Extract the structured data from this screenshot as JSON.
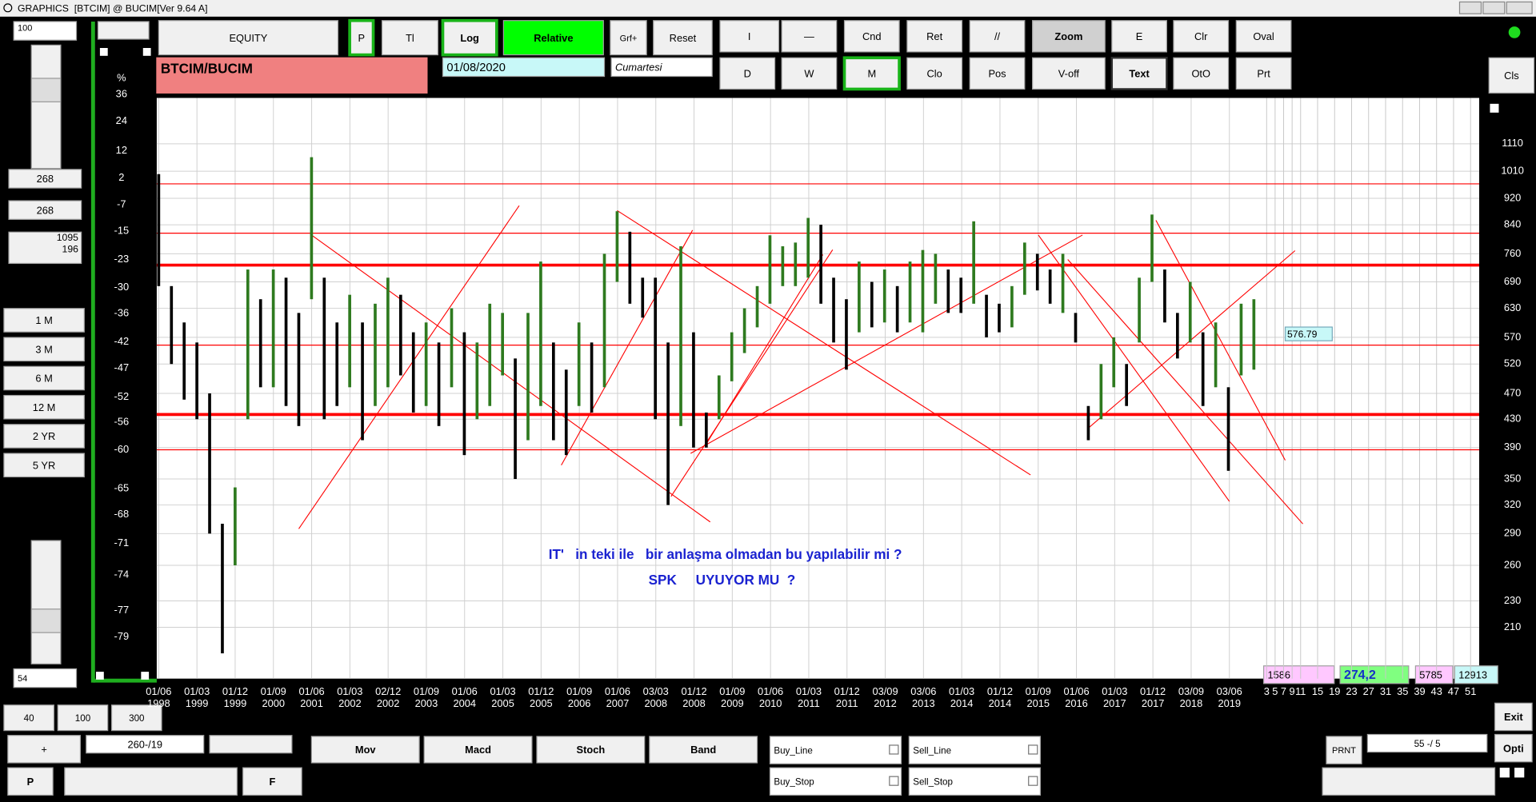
{
  "window": {
    "title": "GRAPHICS  [BTCIM] @ BUCIM[Ver 9.64 A]"
  },
  "toolbar": {
    "row1": [
      "EQUITY",
      "P",
      "Tl",
      "Log",
      "Relative",
      "Grf+",
      "Reset",
      "I",
      "—",
      "Cnd",
      "Ret",
      "//",
      "Zoom",
      "E",
      "Clr",
      "Oval"
    ],
    "row2": [
      "D",
      "W",
      "M",
      "Clo",
      "Pos",
      "V-off",
      "Text",
      "OtO",
      "Prt"
    ],
    "symbol": "BTCIM/BUCIM",
    "date": "01/08/2020",
    "day": "Cumartesi",
    "close": "Cls"
  },
  "left_panel": {
    "input": "100",
    "fields": [
      "268",
      "268"
    ],
    "range": [
      "1095",
      "196"
    ],
    "periods": [
      "1 M",
      "3 M",
      "6 M",
      "12 M",
      "2 YR",
      "5 YR"
    ],
    "bottom_input": "54"
  },
  "bottom_panel": {
    "zoom": [
      "40",
      "100",
      "300"
    ],
    "plus": "+",
    "position": "260-/19",
    "p": "P",
    "f": "F",
    "indicators": [
      "Mov",
      "Macd",
      "Stoch",
      "Band"
    ],
    "orders": [
      "Buy_Line",
      "Sell_Line",
      "Buy_Stop",
      "Sell_Stop"
    ],
    "prnt": "PRNT",
    "count": "55 -/ 5",
    "exit": "Exit",
    "opti": "Opti",
    "stats": [
      "1586",
      "274,2",
      "5785",
      "12913"
    ]
  },
  "chart_data": {
    "type": "ohlc",
    "log": true,
    "grid": true,
    "y2_label": "%",
    "ylim": [
      176,
      1300
    ],
    "yticks": [
      1110,
      1010,
      920,
      840,
      760,
      690,
      630,
      570,
      520,
      470,
      430,
      390,
      350,
      320,
      290,
      260,
      230,
      210
    ],
    "y2lim": [
      -81.8,
      34.4
    ],
    "y2ticks": [
      36,
      24,
      12,
      2,
      -7,
      -15,
      -23,
      -30,
      -36,
      -42,
      -47,
      -52,
      -56,
      -60,
      -65,
      -68,
      -71,
      -74,
      -77,
      -79
    ],
    "x_labels": [
      {
        "day": "01/06",
        "year": "1998"
      },
      {
        "day": "01/03",
        "year": "1999"
      },
      {
        "day": "01/12",
        "year": "1999"
      },
      {
        "day": "01/09",
        "year": "2000"
      },
      {
        "day": "01/06",
        "year": "2001"
      },
      {
        "day": "01/03",
        "year": "2002"
      },
      {
        "day": "02/12",
        "year": "2002"
      },
      {
        "day": "01/09",
        "year": "2003"
      },
      {
        "day": "01/06",
        "year": "2004"
      },
      {
        "day": "01/03",
        "year": "2005"
      },
      {
        "day": "01/12",
        "year": "2005"
      },
      {
        "day": "01/09",
        "year": "2006"
      },
      {
        "day": "01/06",
        "year": "2007"
      },
      {
        "day": "03/03",
        "year": "2008"
      },
      {
        "day": "01/12",
        "year": "2008"
      },
      {
        "day": "01/09",
        "year": "2009"
      },
      {
        "day": "01/06",
        "year": "2010"
      },
      {
        "day": "01/03",
        "year": "2011"
      },
      {
        "day": "01/12",
        "year": "2011"
      },
      {
        "day": "03/09",
        "year": "2012"
      },
      {
        "day": "03/06",
        "year": "2013"
      },
      {
        "day": "01/03",
        "year": "2014"
      },
      {
        "day": "01/12",
        "year": "2014"
      },
      {
        "day": "01/09",
        "year": "2015"
      },
      {
        "day": "01/06",
        "year": "2016"
      },
      {
        "day": "01/03",
        "year": "2017"
      },
      {
        "day": "01/12",
        "year": "2017"
      },
      {
        "day": "03/09",
        "year": "2018"
      },
      {
        "day": "03/06",
        "year": "2019"
      }
    ],
    "future_ticks": [
      3,
      5,
      7,
      9,
      11,
      15,
      19,
      23,
      27,
      31,
      35,
      39,
      43,
      47,
      51
    ],
    "high": [
      1000,
      680,
      600,
      560,
      470,
      300,
      340,
      720,
      650,
      720,
      700,
      620,
      1060,
      700,
      600,
      660,
      600,
      640,
      700,
      660,
      580,
      600,
      560,
      630,
      580,
      560,
      640,
      620,
      530,
      620,
      740,
      560,
      510,
      600,
      560,
      760,
      880,
      820,
      700,
      700,
      560,
      780,
      580,
      440,
      500,
      580,
      630,
      680,
      810,
      780,
      790,
      860,
      840,
      700,
      650,
      740,
      690,
      720,
      680,
      740,
      770,
      760,
      720,
      700,
      850,
      660,
      640,
      680,
      790,
      760,
      720,
      760,
      620,
      450,
      520,
      570,
      520,
      700,
      870,
      720,
      620,
      690,
      580,
      600,
      480,
      640,
      650
    ],
    "low": [
      680,
      520,
      460,
      430,
      290,
      192,
      260,
      430,
      480,
      480,
      450,
      420,
      650,
      430,
      450,
      480,
      400,
      450,
      480,
      500,
      440,
      450,
      420,
      480,
      380,
      430,
      450,
      500,
      350,
      400,
      450,
      400,
      380,
      450,
      440,
      480,
      690,
      640,
      610,
      430,
      320,
      420,
      390,
      390,
      430,
      490,
      540,
      590,
      640,
      680,
      680,
      700,
      640,
      560,
      510,
      580,
      590,
      600,
      580,
      600,
      580,
      640,
      620,
      620,
      640,
      570,
      580,
      590,
      660,
      670,
      640,
      620,
      560,
      400,
      430,
      480,
      450,
      560,
      690,
      600,
      530,
      560,
      450,
      480,
      360,
      500,
      510
    ],
    "up_color": "#2e7a1f",
    "down_color": "#000000",
    "hlines": [
      967,
      816,
      731,
      555,
      437,
      387
    ],
    "hline_color": "#ff0000",
    "trend_color": "#ff0000",
    "cursor_value": 576.79,
    "annotations": [
      "IT'   in teki ile   bir anlaşma olmadan bu yapılabilir mi ?",
      "SPK     UYUYOR MU  ?"
    ]
  }
}
